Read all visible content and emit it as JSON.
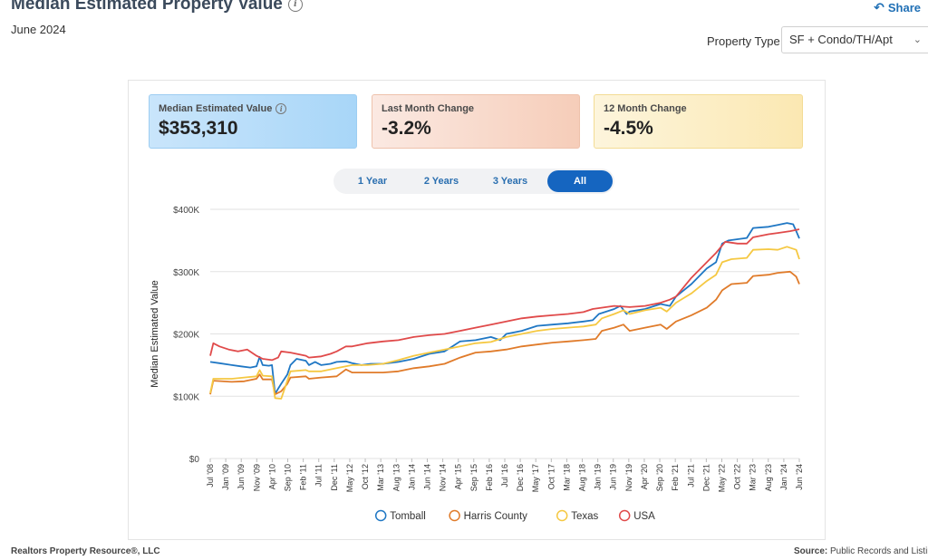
{
  "header": {
    "title": "Median Estimated Property Value",
    "date": "June 2024",
    "share_label": "Share"
  },
  "filter": {
    "label": "Property Type",
    "selected": "SF + Condo/TH/Apt"
  },
  "stats": [
    {
      "label": "Median Estimated Value",
      "value": "$353,310"
    },
    {
      "label": "Last Month Change",
      "value": "-3.2%"
    },
    {
      "label": "12 Month Change",
      "value": "-4.5%"
    }
  ],
  "ranges": [
    {
      "label": "1 Year",
      "active": false
    },
    {
      "label": "2 Years",
      "active": false
    },
    {
      "label": "3 Years",
      "active": false
    },
    {
      "label": "All",
      "active": true
    }
  ],
  "footer": {
    "left": "Realtors Property Resource®, LLC",
    "right_label": "Source:",
    "right_text": "Public Records and Listings"
  },
  "chart_data": {
    "type": "line",
    "ylabel": "Median Estimated Value",
    "ylim": [
      0,
      400000
    ],
    "y_ticks": [
      {
        "value": 0,
        "label": "$0"
      },
      {
        "value": 100000,
        "label": "$100K"
      },
      {
        "value": 200000,
        "label": "$200K"
      },
      {
        "value": 300000,
        "label": "$300K"
      },
      {
        "value": 400000,
        "label": "$400K"
      }
    ],
    "x_range": [
      "2008-07",
      "2024-06"
    ],
    "x_ticks": [
      "Jul '08",
      "Jan '09",
      "Jun '09",
      "Nov '09",
      "Apr '10",
      "Sep '10",
      "Feb '11",
      "Jul '11",
      "Dec '11",
      "May '12",
      "Oct '12",
      "Mar '13",
      "Aug '13",
      "Jan '14",
      "Jun '14",
      "Nov '14",
      "Apr '15",
      "Sep '15",
      "Feb '16",
      "Jul '16",
      "Dec '16",
      "May '17",
      "Oct '17",
      "Mar '18",
      "Aug '18",
      "Jan '19",
      "Jun '19",
      "Nov '19",
      "Apr '20",
      "Sep '20",
      "Feb '21",
      "Jul '21",
      "Dec '21",
      "May '22",
      "Oct '22",
      "Mar '23",
      "Aug '23",
      "Jan '24",
      "Jun '24"
    ],
    "grid": true,
    "legend_position": "bottom",
    "series": [
      {
        "name": "Tomball",
        "color": "#1f77c4",
        "points": [
          [
            "2008-07",
            155000
          ],
          [
            "2008-10",
            153000
          ],
          [
            "2009-02",
            150000
          ],
          [
            "2009-05",
            148000
          ],
          [
            "2009-08",
            146000
          ],
          [
            "2009-10",
            148000
          ],
          [
            "2009-11",
            163000
          ],
          [
            "2009-12",
            150000
          ],
          [
            "2010-02",
            149000
          ],
          [
            "2010-03",
            150000
          ],
          [
            "2010-04",
            104000
          ],
          [
            "2010-06",
            120000
          ],
          [
            "2010-08",
            135000
          ],
          [
            "2010-09",
            150000
          ],
          [
            "2010-11",
            160000
          ],
          [
            "2011-02",
            157000
          ],
          [
            "2011-03",
            150000
          ],
          [
            "2011-05",
            155000
          ],
          [
            "2011-07",
            150000
          ],
          [
            "2011-10",
            152000
          ],
          [
            "2011-12",
            155000
          ],
          [
            "2012-03",
            156000
          ],
          [
            "2012-05",
            153000
          ],
          [
            "2012-08",
            150000
          ],
          [
            "2012-11",
            152000
          ],
          [
            "2013-03",
            152000
          ],
          [
            "2013-08",
            155000
          ],
          [
            "2014-01",
            160000
          ],
          [
            "2014-06",
            168000
          ],
          [
            "2014-11",
            172000
          ],
          [
            "2015-04",
            188000
          ],
          [
            "2015-09",
            190000
          ],
          [
            "2016-02",
            195000
          ],
          [
            "2016-05",
            190000
          ],
          [
            "2016-07",
            200000
          ],
          [
            "2016-12",
            205000
          ],
          [
            "2017-05",
            213000
          ],
          [
            "2017-10",
            215000
          ],
          [
            "2018-03",
            217000
          ],
          [
            "2018-08",
            220000
          ],
          [
            "2018-11",
            222000
          ],
          [
            "2019-01",
            232000
          ],
          [
            "2019-06",
            240000
          ],
          [
            "2019-08",
            245000
          ],
          [
            "2019-10",
            232000
          ],
          [
            "2019-11",
            236000
          ],
          [
            "2020-04",
            240000
          ],
          [
            "2020-09",
            248000
          ],
          [
            "2020-12",
            245000
          ],
          [
            "2021-02",
            260000
          ],
          [
            "2021-07",
            280000
          ],
          [
            "2021-12",
            305000
          ],
          [
            "2022-03",
            315000
          ],
          [
            "2022-05",
            345000
          ],
          [
            "2022-07",
            350000
          ],
          [
            "2022-10",
            352000
          ],
          [
            "2023-01",
            354000
          ],
          [
            "2023-03",
            370000
          ],
          [
            "2023-08",
            372000
          ],
          [
            "2023-11",
            375000
          ],
          [
            "2024-02",
            378000
          ],
          [
            "2024-04",
            376000
          ],
          [
            "2024-05",
            365000
          ],
          [
            "2024-06",
            353310
          ]
        ]
      },
      {
        "name": "Harris County",
        "color": "#e07b2a",
        "points": [
          [
            "2008-07",
            103000
          ],
          [
            "2008-08",
            125000
          ],
          [
            "2009-02",
            123000
          ],
          [
            "2009-06",
            124000
          ],
          [
            "2009-10",
            128000
          ],
          [
            "2009-11",
            135000
          ],
          [
            "2009-12",
            127000
          ],
          [
            "2010-03",
            127000
          ],
          [
            "2010-04",
            103000
          ],
          [
            "2010-06",
            108000
          ],
          [
            "2010-08",
            120000
          ],
          [
            "2010-09",
            130000
          ],
          [
            "2011-02",
            132000
          ],
          [
            "2011-03",
            128000
          ],
          [
            "2011-07",
            130000
          ],
          [
            "2011-12",
            132000
          ],
          [
            "2012-03",
            143000
          ],
          [
            "2012-05",
            138000
          ],
          [
            "2012-10",
            138000
          ],
          [
            "2013-03",
            138000
          ],
          [
            "2013-08",
            140000
          ],
          [
            "2014-01",
            145000
          ],
          [
            "2014-06",
            148000
          ],
          [
            "2014-11",
            152000
          ],
          [
            "2015-04",
            162000
          ],
          [
            "2015-09",
            170000
          ],
          [
            "2016-02",
            172000
          ],
          [
            "2016-07",
            175000
          ],
          [
            "2016-12",
            180000
          ],
          [
            "2017-05",
            183000
          ],
          [
            "2017-10",
            186000
          ],
          [
            "2018-03",
            188000
          ],
          [
            "2018-08",
            190000
          ],
          [
            "2018-12",
            192000
          ],
          [
            "2019-02",
            205000
          ],
          [
            "2019-06",
            210000
          ],
          [
            "2019-09",
            215000
          ],
          [
            "2019-11",
            205000
          ],
          [
            "2020-04",
            210000
          ],
          [
            "2020-09",
            215000
          ],
          [
            "2020-11",
            208000
          ],
          [
            "2021-02",
            220000
          ],
          [
            "2021-07",
            230000
          ],
          [
            "2021-12",
            242000
          ],
          [
            "2022-03",
            255000
          ],
          [
            "2022-05",
            270000
          ],
          [
            "2022-08",
            280000
          ],
          [
            "2023-01",
            282000
          ],
          [
            "2023-03",
            293000
          ],
          [
            "2023-08",
            295000
          ],
          [
            "2023-11",
            298000
          ],
          [
            "2024-03",
            300000
          ],
          [
            "2024-05",
            292000
          ],
          [
            "2024-06",
            280000
          ]
        ]
      },
      {
        "name": "Texas",
        "color": "#f5c842",
        "points": [
          [
            "2008-07",
            105000
          ],
          [
            "2008-08",
            128000
          ],
          [
            "2009-02",
            128000
          ],
          [
            "2009-06",
            130000
          ],
          [
            "2009-10",
            132000
          ],
          [
            "2009-11",
            142000
          ],
          [
            "2009-12",
            133000
          ],
          [
            "2010-03",
            132000
          ],
          [
            "2010-04",
            97000
          ],
          [
            "2010-06",
            96000
          ],
          [
            "2010-08",
            125000
          ],
          [
            "2010-09",
            140000
          ],
          [
            "2011-02",
            142000
          ],
          [
            "2011-03",
            140000
          ],
          [
            "2011-07",
            140000
          ],
          [
            "2011-12",
            145000
          ],
          [
            "2012-03",
            148000
          ],
          [
            "2012-05",
            150000
          ],
          [
            "2012-10",
            150000
          ],
          [
            "2013-03",
            152000
          ],
          [
            "2013-08",
            158000
          ],
          [
            "2014-01",
            165000
          ],
          [
            "2014-06",
            170000
          ],
          [
            "2014-11",
            175000
          ],
          [
            "2015-04",
            180000
          ],
          [
            "2015-09",
            185000
          ],
          [
            "2016-02",
            187000
          ],
          [
            "2016-07",
            195000
          ],
          [
            "2016-12",
            200000
          ],
          [
            "2017-05",
            205000
          ],
          [
            "2017-10",
            208000
          ],
          [
            "2018-03",
            210000
          ],
          [
            "2018-08",
            212000
          ],
          [
            "2018-12",
            215000
          ],
          [
            "2019-02",
            225000
          ],
          [
            "2019-06",
            232000
          ],
          [
            "2019-09",
            238000
          ],
          [
            "2019-11",
            232000
          ],
          [
            "2020-04",
            238000
          ],
          [
            "2020-09",
            242000
          ],
          [
            "2020-11",
            236000
          ],
          [
            "2021-02",
            250000
          ],
          [
            "2021-07",
            265000
          ],
          [
            "2021-12",
            285000
          ],
          [
            "2022-03",
            295000
          ],
          [
            "2022-05",
            315000
          ],
          [
            "2022-08",
            320000
          ],
          [
            "2023-01",
            322000
          ],
          [
            "2023-03",
            335000
          ],
          [
            "2023-08",
            336000
          ],
          [
            "2023-11",
            335000
          ],
          [
            "2024-02",
            340000
          ],
          [
            "2024-05",
            335000
          ],
          [
            "2024-06",
            320000
          ]
        ]
      },
      {
        "name": "USA",
        "color": "#e04a4a",
        "points": [
          [
            "2008-07",
            165000
          ],
          [
            "2008-08",
            185000
          ],
          [
            "2008-10",
            180000
          ],
          [
            "2009-01",
            175000
          ],
          [
            "2009-04",
            172000
          ],
          [
            "2009-07",
            175000
          ],
          [
            "2009-10",
            165000
          ],
          [
            "2009-12",
            160000
          ],
          [
            "2010-03",
            158000
          ],
          [
            "2010-05",
            162000
          ],
          [
            "2010-06",
            172000
          ],
          [
            "2010-09",
            170000
          ],
          [
            "2011-02",
            165000
          ],
          [
            "2011-03",
            162000
          ],
          [
            "2011-07",
            164000
          ],
          [
            "2011-10",
            168000
          ],
          [
            "2011-12",
            172000
          ],
          [
            "2012-03",
            180000
          ],
          [
            "2012-05",
            180000
          ],
          [
            "2012-10",
            185000
          ],
          [
            "2013-03",
            188000
          ],
          [
            "2013-08",
            190000
          ],
          [
            "2014-01",
            195000
          ],
          [
            "2014-06",
            198000
          ],
          [
            "2014-11",
            200000
          ],
          [
            "2015-04",
            205000
          ],
          [
            "2015-09",
            210000
          ],
          [
            "2016-02",
            215000
          ],
          [
            "2016-07",
            220000
          ],
          [
            "2016-12",
            225000
          ],
          [
            "2017-05",
            228000
          ],
          [
            "2017-10",
            230000
          ],
          [
            "2018-03",
            232000
          ],
          [
            "2018-08",
            235000
          ],
          [
            "2018-11",
            240000
          ],
          [
            "2019-06",
            245000
          ],
          [
            "2019-11",
            243000
          ],
          [
            "2020-04",
            245000
          ],
          [
            "2020-09",
            250000
          ],
          [
            "2020-12",
            255000
          ],
          [
            "2021-02",
            260000
          ],
          [
            "2021-07",
            290000
          ],
          [
            "2021-12",
            315000
          ],
          [
            "2022-03",
            330000
          ],
          [
            "2022-06",
            348000
          ],
          [
            "2022-10",
            345000
          ],
          [
            "2023-01",
            345000
          ],
          [
            "2023-03",
            355000
          ],
          [
            "2023-08",
            360000
          ],
          [
            "2023-11",
            362000
          ],
          [
            "2024-03",
            365000
          ],
          [
            "2024-06",
            368000
          ]
        ]
      }
    ]
  }
}
